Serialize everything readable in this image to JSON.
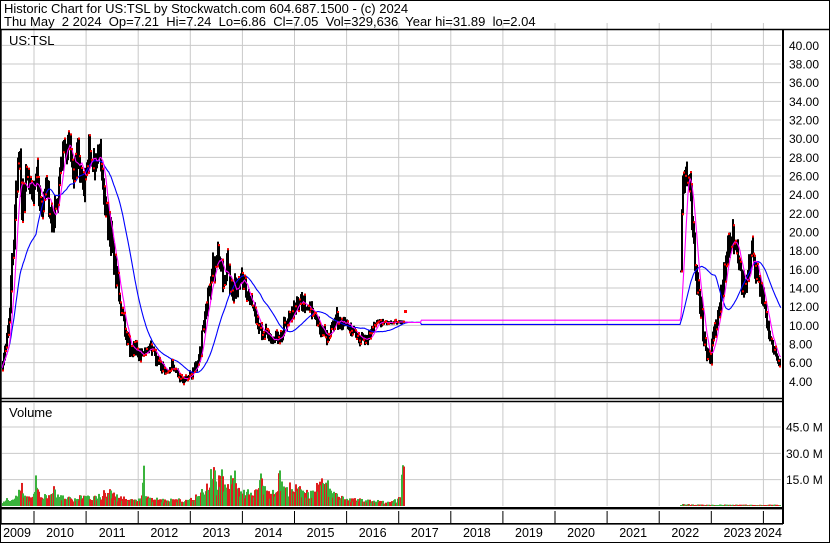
{
  "header": {
    "line1": "Historic Chart for US:TSL by Stockwatch.com 604.687.1500 - (c) 2024",
    "line2": "Thu May  2 2024  Op=7.21  Hi=7.24  Lo=6.86  Cl=7.05  Vol=329,636  Year hi=31.89  lo=2.04"
  },
  "price_panel_label": "US:TSL",
  "volume_panel_label": "Volume",
  "colors": {
    "background": "#ffffff",
    "grid": "#c9c9c9",
    "border": "#000000",
    "candle": "#000000",
    "candle_dot": "#ff0000",
    "ma_fast": "#ff00ff",
    "ma_slow": "#0000ff",
    "volume_up": "#3ab33c",
    "volume_down": "#df1f1f",
    "text": "#000000"
  },
  "chart_data": {
    "type": "candlestick",
    "symbol": "US:TSL",
    "title": "Historic Chart for US:TSL",
    "latest_quote": {
      "date": "Thu May 2 2024",
      "open": 7.21,
      "high": 7.24,
      "low": 6.86,
      "close": 7.05,
      "volume": "329,636",
      "year_high": 31.89,
      "year_low": 2.04
    },
    "y_axis": {
      "side": "right",
      "tick_values": [
        40,
        38,
        36,
        34,
        32,
        30,
        28,
        26,
        24,
        22,
        20,
        18,
        16,
        14,
        12,
        10,
        8,
        6,
        4
      ],
      "range": [
        2.2,
        41.5
      ]
    },
    "volume_axis": {
      "side": "right",
      "tick_labels": [
        "45.0 M",
        "30.0 M",
        "15.0 M"
      ],
      "tick_values_m": [
        45,
        30,
        15
      ]
    },
    "x_axis": {
      "years": [
        "2009",
        "2010",
        "2011",
        "2012",
        "2013",
        "2014",
        "2015",
        "2016",
        "2017",
        "2018",
        "2019",
        "2020",
        "2021",
        "2022",
        "2023",
        "2024"
      ],
      "range": [
        2009.386,
        2024.345
      ]
    },
    "trading_gap": {
      "from": 2017.12,
      "to": 2022.41,
      "ma_fast_flat_level": 10.55,
      "ma_slow_flat_level": 10.1
    },
    "moving_averages": {
      "fast_weeks": 8,
      "slow_weeks": 35
    },
    "price_anchors": [
      [
        2009.386,
        5.0,
        0.6
      ],
      [
        2009.45,
        7.5,
        0.9
      ],
      [
        2009.55,
        13,
        1.3
      ],
      [
        2009.62,
        20,
        1.6
      ],
      [
        2009.7,
        28.5,
        1.9
      ],
      [
        2009.78,
        23,
        1.8
      ],
      [
        2009.86,
        26.5,
        1.6
      ],
      [
        2009.95,
        24,
        1.5
      ],
      [
        2010.05,
        27,
        1.5
      ],
      [
        2010.15,
        21,
        1.8
      ],
      [
        2010.25,
        25.5,
        1.6
      ],
      [
        2010.35,
        19.5,
        1.7
      ],
      [
        2010.45,
        23.5,
        1.5
      ],
      [
        2010.55,
        28,
        1.5
      ],
      [
        2010.65,
        30,
        1.5
      ],
      [
        2010.75,
        26,
        1.5
      ],
      [
        2010.85,
        28.5,
        1.5
      ],
      [
        2010.95,
        24.5,
        1.5
      ],
      [
        2011.05,
        29.5,
        1.6
      ],
      [
        2011.15,
        27.5,
        1.5
      ],
      [
        2011.25,
        29,
        1.5
      ],
      [
        2011.35,
        24,
        1.9
      ],
      [
        2011.45,
        20,
        1.9
      ],
      [
        2011.55,
        16,
        1.6
      ],
      [
        2011.65,
        13,
        1.3
      ],
      [
        2011.75,
        9.2,
        1.0
      ],
      [
        2011.85,
        7.0,
        0.8
      ],
      [
        2011.95,
        7.8,
        0.8
      ],
      [
        2012.05,
        6.5,
        0.7
      ],
      [
        2012.15,
        7.6,
        0.7
      ],
      [
        2012.25,
        7.8,
        0.7
      ],
      [
        2012.35,
        6.2,
        0.6
      ],
      [
        2012.45,
        5.5,
        0.6
      ],
      [
        2012.55,
        5.0,
        0.5
      ],
      [
        2012.65,
        5.8,
        0.5
      ],
      [
        2012.75,
        4.6,
        0.5
      ],
      [
        2012.85,
        4.0,
        0.45
      ],
      [
        2012.95,
        4.4,
        0.45
      ],
      [
        2013.05,
        5.0,
        0.6
      ],
      [
        2013.15,
        6.5,
        0.8
      ],
      [
        2013.25,
        9.5,
        1.1
      ],
      [
        2013.35,
        13.5,
        1.3
      ],
      [
        2013.45,
        16.5,
        1.4
      ],
      [
        2013.55,
        17.5,
        1.3
      ],
      [
        2013.62,
        15.0,
        1.3
      ],
      [
        2013.7,
        16.5,
        1.2
      ],
      [
        2013.8,
        13.5,
        1.2
      ],
      [
        2013.9,
        14.5,
        1.1
      ],
      [
        2014.0,
        15.5,
        1.1
      ],
      [
        2014.1,
        13.0,
        1.0
      ],
      [
        2014.2,
        11.5,
        1.0
      ],
      [
        2014.3,
        10.2,
        0.9
      ],
      [
        2014.45,
        9.0,
        0.85
      ],
      [
        2014.6,
        8.4,
        0.8
      ],
      [
        2014.75,
        9.0,
        0.9
      ],
      [
        2014.9,
        11.0,
        0.95
      ],
      [
        2015.05,
        12.3,
        0.9
      ],
      [
        2015.2,
        12.5,
        0.85
      ],
      [
        2015.35,
        11.0,
        0.8
      ],
      [
        2015.5,
        9.6,
        0.8
      ],
      [
        2015.65,
        8.6,
        0.75
      ],
      [
        2015.78,
        11.2,
        0.8
      ],
      [
        2015.9,
        10.2,
        0.7
      ],
      [
        2016.0,
        10.4,
        0.65
      ],
      [
        2016.1,
        9.4,
        0.6
      ],
      [
        2016.25,
        8.6,
        0.55
      ],
      [
        2016.4,
        8.3,
        0.55
      ],
      [
        2016.55,
        10.2,
        0.45
      ],
      [
        2016.7,
        10.3,
        0.35
      ],
      [
        2016.85,
        10.3,
        0.3
      ],
      [
        2017.0,
        10.35,
        0.25
      ],
      [
        2017.1,
        10.45,
        0.2
      ],
      [
        2017.15,
        10.3,
        0.02
      ],
      [
        2022.4,
        10.3,
        0.02
      ],
      [
        2022.45,
        25.8,
        1.2
      ],
      [
        2022.52,
        26.5,
        1.4
      ],
      [
        2022.6,
        24.5,
        1.6
      ],
      [
        2022.68,
        17.5,
        1.9
      ],
      [
        2022.76,
        12.5,
        1.6
      ],
      [
        2022.84,
        9.5,
        1.3
      ],
      [
        2022.92,
        7.2,
        1.1
      ],
      [
        2023.0,
        6.6,
        1.0
      ],
      [
        2023.06,
        9.0,
        1.2
      ],
      [
        2023.14,
        12.5,
        1.4
      ],
      [
        2023.22,
        15.0,
        1.4
      ],
      [
        2023.32,
        18.0,
        1.5
      ],
      [
        2023.4,
        20.3,
        1.5
      ],
      [
        2023.48,
        18.8,
        1.4
      ],
      [
        2023.56,
        15.5,
        1.3
      ],
      [
        2023.65,
        13.6,
        1.2
      ],
      [
        2023.72,
        17.0,
        1.3
      ],
      [
        2023.78,
        18.0,
        1.2
      ],
      [
        2023.86,
        16.0,
        1.2
      ],
      [
        2023.94,
        14.0,
        1.1
      ],
      [
        2024.02,
        11.8,
        1.0
      ],
      [
        2024.1,
        9.3,
        0.9
      ],
      [
        2024.18,
        7.8,
        0.8
      ],
      [
        2024.26,
        6.4,
        0.65
      ],
      [
        2024.32,
        6.0,
        0.55
      ],
      [
        2024.345,
        7.05,
        0.4
      ]
    ],
    "last_isolated_close": {
      "t": 2017.13,
      "price": 11.6
    },
    "volume_anchors_m": [
      [
        2009.386,
        2
      ],
      [
        2009.55,
        4
      ],
      [
        2009.7,
        7
      ],
      [
        2009.75,
        12
      ],
      [
        2009.8,
        5
      ],
      [
        2009.95,
        4
      ],
      [
        2010.0,
        5
      ],
      [
        2010.04,
        13
      ],
      [
        2010.1,
        5
      ],
      [
        2010.3,
        5
      ],
      [
        2010.38,
        8
      ],
      [
        2010.45,
        5
      ],
      [
        2010.6,
        4
      ],
      [
        2010.8,
        4
      ],
      [
        2011.0,
        5
      ],
      [
        2011.2,
        4
      ],
      [
        2011.35,
        7
      ],
      [
        2011.45,
        8
      ],
      [
        2011.55,
        5
      ],
      [
        2011.8,
        3.5
      ],
      [
        2012.0,
        3
      ],
      [
        2012.06,
        4
      ],
      [
        2012.1,
        20
      ],
      [
        2012.14,
        4
      ],
      [
        2012.3,
        4
      ],
      [
        2012.5,
        3
      ],
      [
        2012.7,
        3.5
      ],
      [
        2012.9,
        3
      ],
      [
        2013.05,
        4
      ],
      [
        2013.2,
        6
      ],
      [
        2013.35,
        12
      ],
      [
        2013.42,
        20
      ],
      [
        2013.5,
        10
      ],
      [
        2013.6,
        15
      ],
      [
        2013.7,
        8
      ],
      [
        2013.82,
        19
      ],
      [
        2013.9,
        8
      ],
      [
        2014.0,
        8
      ],
      [
        2014.15,
        6
      ],
      [
        2014.35,
        14
      ],
      [
        2014.45,
        6
      ],
      [
        2014.6,
        8
      ],
      [
        2014.72,
        16
      ],
      [
        2014.85,
        8
      ],
      [
        2015.0,
        12
      ],
      [
        2015.15,
        7
      ],
      [
        2015.3,
        6
      ],
      [
        2015.5,
        11
      ],
      [
        2015.6,
        13
      ],
      [
        2015.7,
        6
      ],
      [
        2015.9,
        5
      ],
      [
        2016.0,
        4
      ],
      [
        2016.2,
        3
      ],
      [
        2016.4,
        3
      ],
      [
        2016.6,
        2.5
      ],
      [
        2016.8,
        2
      ],
      [
        2017.0,
        3
      ],
      [
        2017.06,
        8
      ],
      [
        2017.1,
        30
      ],
      [
        2017.15,
        0
      ],
      [
        2022.4,
        0
      ],
      [
        2022.45,
        0.9
      ],
      [
        2022.6,
        0.7
      ],
      [
        2022.8,
        0.6
      ],
      [
        2023.0,
        0.5
      ],
      [
        2023.2,
        0.7
      ],
      [
        2023.4,
        0.8
      ],
      [
        2023.6,
        0.6
      ],
      [
        2023.8,
        0.5
      ],
      [
        2024.0,
        0.5
      ],
      [
        2024.2,
        0.6
      ],
      [
        2024.345,
        0.5
      ]
    ]
  }
}
